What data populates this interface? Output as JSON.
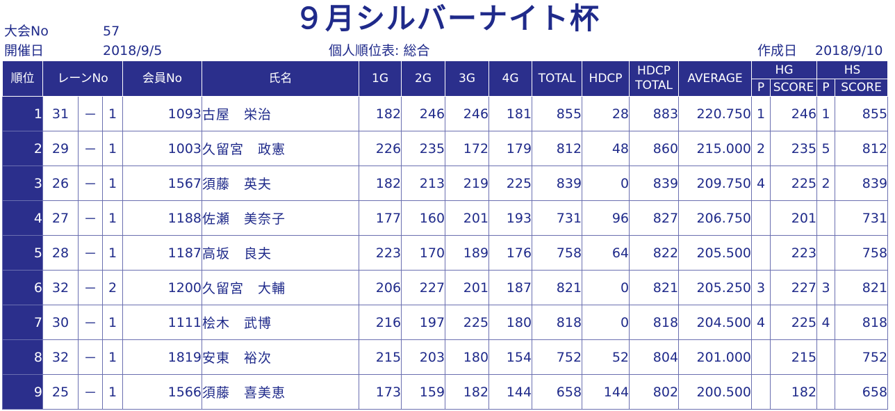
{
  "title": "９月シルバーナイト杯",
  "meta": {
    "tournament_label": "大会No",
    "tournament_no": "57",
    "date_label": "開催日",
    "date": "2018/9/5",
    "report_title": "個人順位表: 総合",
    "created_label": "作成日",
    "created_date": "2018/9/10"
  },
  "headers": {
    "rank": "順位",
    "lane": "レーンNo",
    "member": "会員No",
    "name": "氏名",
    "g1": "1G",
    "g2": "2G",
    "g3": "3G",
    "g4": "4G",
    "total": "TOTAL",
    "hdcp": "HDCP",
    "hdcp_total_1": "HDCP",
    "hdcp_total_2": "TOTAL",
    "average": "AVERAGE",
    "hg": "HG",
    "hs": "HS",
    "hg_p": "P",
    "hg_score": "SCORE",
    "hs_p": "P",
    "hs_score": "SCORE"
  },
  "rows": [
    {
      "rank": "1",
      "lane": "31",
      "sep": "－",
      "lane_sub": "1",
      "member": "1093",
      "name": "古屋　栄治",
      "g1": "182",
      "g2": "246",
      "g3": "246",
      "g4": "181",
      "total": "855",
      "hdcp": "28",
      "hdcp_total": "883",
      "average": "220.750",
      "hg_p": "1",
      "hg_score": "246",
      "hs_p": "1",
      "hs_score": "855"
    },
    {
      "rank": "2",
      "lane": "29",
      "sep": "－",
      "lane_sub": "1",
      "member": "1003",
      "name": "久留宮　政憲",
      "g1": "226",
      "g2": "235",
      "g3": "172",
      "g4": "179",
      "total": "812",
      "hdcp": "48",
      "hdcp_total": "860",
      "average": "215.000",
      "hg_p": "2",
      "hg_score": "235",
      "hs_p": "5",
      "hs_score": "812"
    },
    {
      "rank": "3",
      "lane": "26",
      "sep": "－",
      "lane_sub": "1",
      "member": "1567",
      "name": "須藤　英夫",
      "g1": "182",
      "g2": "213",
      "g3": "219",
      "g4": "225",
      "total": "839",
      "hdcp": "0",
      "hdcp_total": "839",
      "average": "209.750",
      "hg_p": "4",
      "hg_score": "225",
      "hs_p": "2",
      "hs_score": "839"
    },
    {
      "rank": "4",
      "lane": "27",
      "sep": "－",
      "lane_sub": "1",
      "member": "1188",
      "name": "佐瀬　美奈子",
      "g1": "177",
      "g2": "160",
      "g3": "201",
      "g4": "193",
      "total": "731",
      "hdcp": "96",
      "hdcp_total": "827",
      "average": "206.750",
      "hg_p": "",
      "hg_score": "201",
      "hs_p": "",
      "hs_score": "731"
    },
    {
      "rank": "5",
      "lane": "28",
      "sep": "－",
      "lane_sub": "1",
      "member": "1187",
      "name": "高坂　良夫",
      "g1": "223",
      "g2": "170",
      "g3": "189",
      "g4": "176",
      "total": "758",
      "hdcp": "64",
      "hdcp_total": "822",
      "average": "205.500",
      "hg_p": "",
      "hg_score": "223",
      "hs_p": "",
      "hs_score": "758"
    },
    {
      "rank": "6",
      "lane": "32",
      "sep": "－",
      "lane_sub": "2",
      "member": "1200",
      "name": "久留宮　大輔",
      "g1": "206",
      "g2": "227",
      "g3": "201",
      "g4": "187",
      "total": "821",
      "hdcp": "0",
      "hdcp_total": "821",
      "average": "205.250",
      "hg_p": "3",
      "hg_score": "227",
      "hs_p": "3",
      "hs_score": "821"
    },
    {
      "rank": "7",
      "lane": "30",
      "sep": "－",
      "lane_sub": "1",
      "member": "1111",
      "name": "桧木　武博",
      "g1": "216",
      "g2": "197",
      "g3": "225",
      "g4": "180",
      "total": "818",
      "hdcp": "0",
      "hdcp_total": "818",
      "average": "204.500",
      "hg_p": "4",
      "hg_score": "225",
      "hs_p": "4",
      "hs_score": "818"
    },
    {
      "rank": "8",
      "lane": "32",
      "sep": "－",
      "lane_sub": "1",
      "member": "1819",
      "name": "安東　裕次",
      "g1": "215",
      "g2": "203",
      "g3": "180",
      "g4": "154",
      "total": "752",
      "hdcp": "52",
      "hdcp_total": "804",
      "average": "201.000",
      "hg_p": "",
      "hg_score": "215",
      "hs_p": "",
      "hs_score": "752"
    },
    {
      "rank": "9",
      "lane": "25",
      "sep": "－",
      "lane_sub": "1",
      "member": "1566",
      "name": "須藤　喜美恵",
      "g1": "173",
      "g2": "159",
      "g3": "182",
      "g4": "144",
      "total": "658",
      "hdcp": "144",
      "hdcp_total": "802",
      "average": "200.500",
      "hg_p": "",
      "hg_score": "182",
      "hs_p": "",
      "hs_score": "658"
    }
  ],
  "colors": {
    "header_bg": "#2b2f8c",
    "text": "#1f2a8a"
  }
}
